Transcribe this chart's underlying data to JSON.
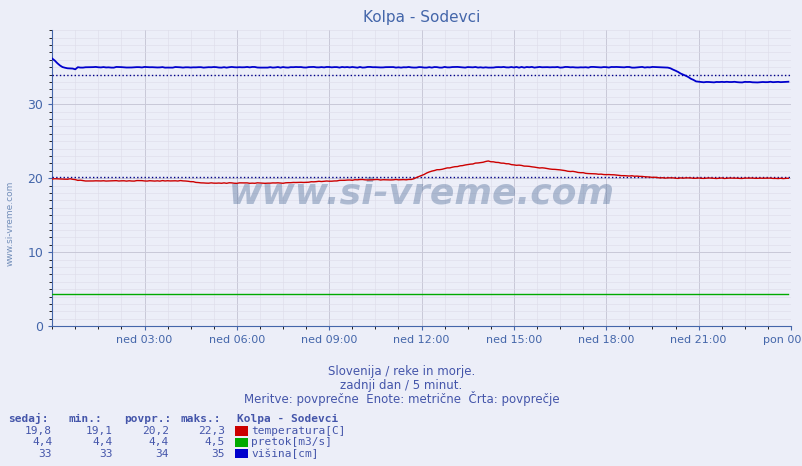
{
  "title": "Kolpa - Sodevci",
  "bg_color": "#eceef8",
  "plot_bg_color": "#eceef8",
  "subtitle_lines": [
    "Slovenija / reke in morje.",
    "zadnji dan / 5 minut.",
    "Meritve: povprečne  Enote: metrične  Črta: povprečje"
  ],
  "xlabel_ticks": [
    "ned 03:00",
    "ned 06:00",
    "ned 09:00",
    "ned 12:00",
    "ned 15:00",
    "ned 18:00",
    "ned 21:00",
    "pon 00:00"
  ],
  "ylim": [
    0,
    40
  ],
  "xlim": [
    0,
    288
  ],
  "major_grid_color": "#c8c8d8",
  "minor_grid_color": "#dcdce8",
  "tick_color": "#4466aa",
  "text_color": "#4455aa",
  "watermark": "www.si-vreme.com",
  "table_headers": [
    "sedaj:",
    "min.:",
    "povpr.:",
    "maks.:"
  ],
  "table_data": [
    [
      "19,8",
      "19,1",
      "20,2",
      "22,3",
      "temperatura[C]",
      "#cc0000"
    ],
    [
      "4,4",
      "4,4",
      "4,4",
      "4,5",
      "pretok[m3/s]",
      "#00aa00"
    ],
    [
      "33",
      "33",
      "34",
      "35",
      "višina[cm]",
      "#0000cc"
    ]
  ],
  "station_label": "Kolpa - Sodevci",
  "temp_color": "#cc0000",
  "pretok_color": "#00aa00",
  "visina_color": "#0000cc",
  "dotted_line_color": "#000088",
  "n_points": 288,
  "avg_temp": 20.2,
  "avg_visina": 34.0
}
